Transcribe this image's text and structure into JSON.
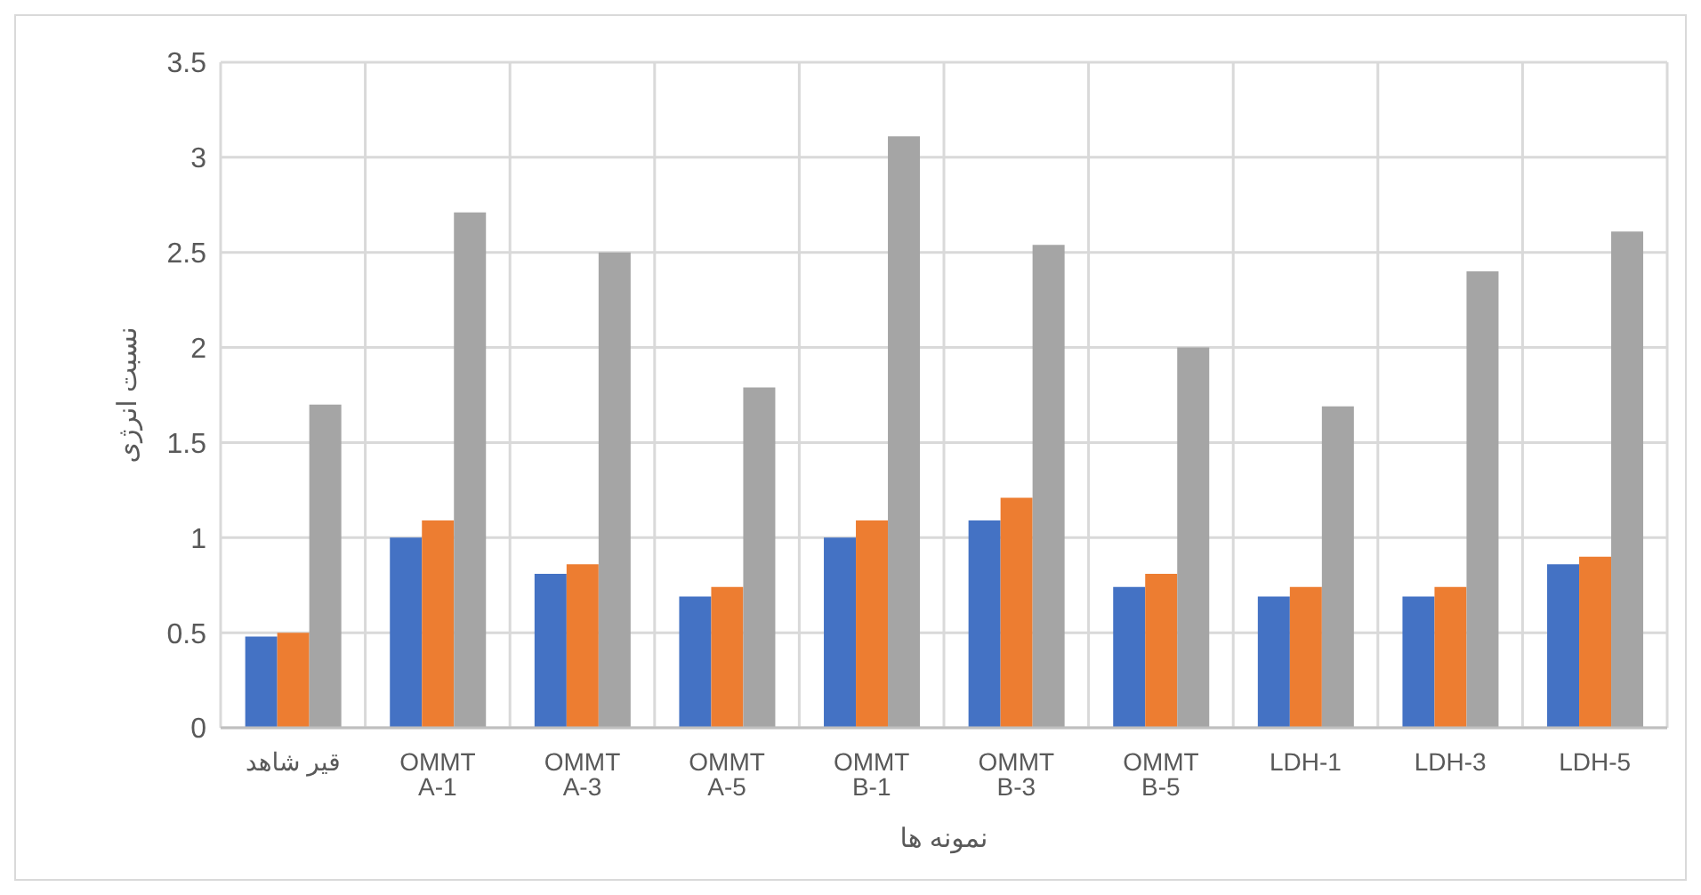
{
  "chart_data": {
    "type": "bar",
    "xlabel": "نمونه ها",
    "ylabel": "نسبت انرژی",
    "categories": [
      "قیر شاهد",
      "OMMT A-1",
      "OMMT A-3",
      "OMMT A-5",
      "OMMT B-1",
      "OMMT B-3",
      "OMMT B-5",
      "LDH-1",
      "LDH-3",
      "LDH-5"
    ],
    "series": [
      {
        "color": "#4472c4",
        "values": [
          0.48,
          1.0,
          0.81,
          0.69,
          1.0,
          1.09,
          0.74,
          0.69,
          0.69,
          0.86
        ]
      },
      {
        "color": "#ed7d31",
        "values": [
          0.5,
          1.09,
          0.86,
          0.74,
          1.09,
          1.21,
          0.81,
          0.74,
          0.74,
          0.9
        ]
      },
      {
        "color": "#a5a5a5",
        "values": [
          1.7,
          2.71,
          2.5,
          1.79,
          3.11,
          2.54,
          2.0,
          1.69,
          2.4,
          2.61
        ]
      }
    ],
    "ylim": [
      0,
      3.5
    ],
    "yticks": [
      0,
      0.5,
      1,
      1.5,
      2,
      2.5,
      3,
      3.5
    ],
    "grid": true,
    "legend": false
  }
}
